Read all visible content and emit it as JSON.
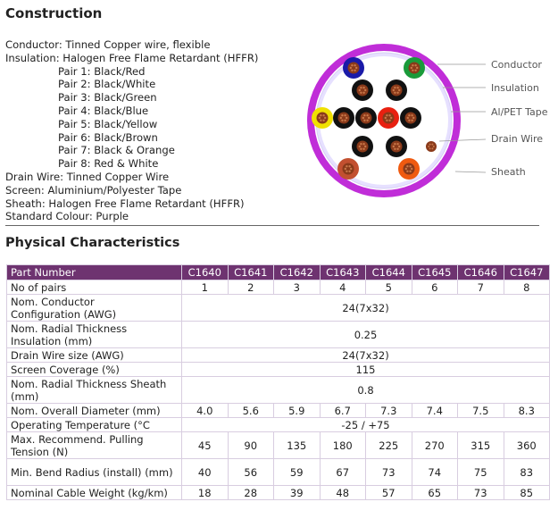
{
  "construction": {
    "title": "Construction",
    "conductor": "Conductor: Tinned Copper wire, flexible",
    "insulation": "Insulation: Halogen Free Flame Retardant (HFFR)",
    "pairs": [
      "Pair 1: Black/Red",
      "Pair 2: Black/White",
      "Pair 3: Black/Green",
      "Pair 4: Black/Blue",
      "Pair 5: Black/Yellow",
      "Pair 6: Black/Brown",
      "Pair 7: Black & Orange",
      "Pair 8: Red & White"
    ],
    "drain_wire": "Drain Wire: Tinned Copper Wire",
    "screen": "Screen: Aluminium/Polyester Tape",
    "sheath": "Sheath: Halogen Free Flame Retardant (HFFR)",
    "standard_colour": "Standard Colour: Purple"
  },
  "diagram": {
    "labels": [
      "Conductor",
      "Insulation",
      "Al/PET Tape",
      "Drain Wire",
      "Sheath"
    ],
    "colors": {
      "sheath": "#c02dd8",
      "screen": "#e6e0ff",
      "black": "#111111",
      "copper": "#8a3a1a",
      "red": "#e82010",
      "green": "#1a9a3a",
      "blue": "#1a1aa8",
      "yellow": "#f0e000",
      "orange": "#ef5a10"
    }
  },
  "physical": {
    "title": "Physical Characteristics",
    "header": [
      "Part Number",
      "C1640",
      "C1641",
      "C1642",
      "C1643",
      "C1644",
      "C1645",
      "C1646",
      "C1647"
    ],
    "rows": [
      {
        "label": "No of pairs",
        "values": [
          "1",
          "2",
          "3",
          "4",
          "5",
          "6",
          "7",
          "8"
        ]
      },
      {
        "label": "Nom. Conductor Configuration (AWG)",
        "value": "24(7x32)"
      },
      {
        "label": "Nom. Radial Thickness Insulation (mm)",
        "value": "0.25"
      },
      {
        "label": "Drain Wire size (AWG)",
        "value": "24(7x32)"
      },
      {
        "label": "Screen Coverage (%)",
        "value": "115"
      },
      {
        "label": "Nom. Radial Thickness Sheath (mm)",
        "value": "0.8"
      },
      {
        "label": "Nom. Overall Diameter (mm)",
        "values": [
          "4.0",
          "5.6",
          "5.9",
          "6.7",
          "7.3",
          "7.4",
          "7.5",
          "8.3"
        ]
      },
      {
        "label": "Operating Temperature (°C",
        "value": "-25 / +75"
      },
      {
        "label": "Max. Recommend. Pulling Tension (N)",
        "values": [
          "45",
          "90",
          "135",
          "180",
          "225",
          "270",
          "315",
          "360"
        ]
      },
      {
        "label": "Min. Bend Radius (install) (mm)",
        "values": [
          "40",
          "56",
          "59",
          "67",
          "73",
          "74",
          "75",
          "83"
        ]
      },
      {
        "label": "Nominal Cable Weight (kg/km)",
        "values": [
          "18",
          "28",
          "39",
          "48",
          "57",
          "65",
          "73",
          "85"
        ]
      }
    ]
  }
}
